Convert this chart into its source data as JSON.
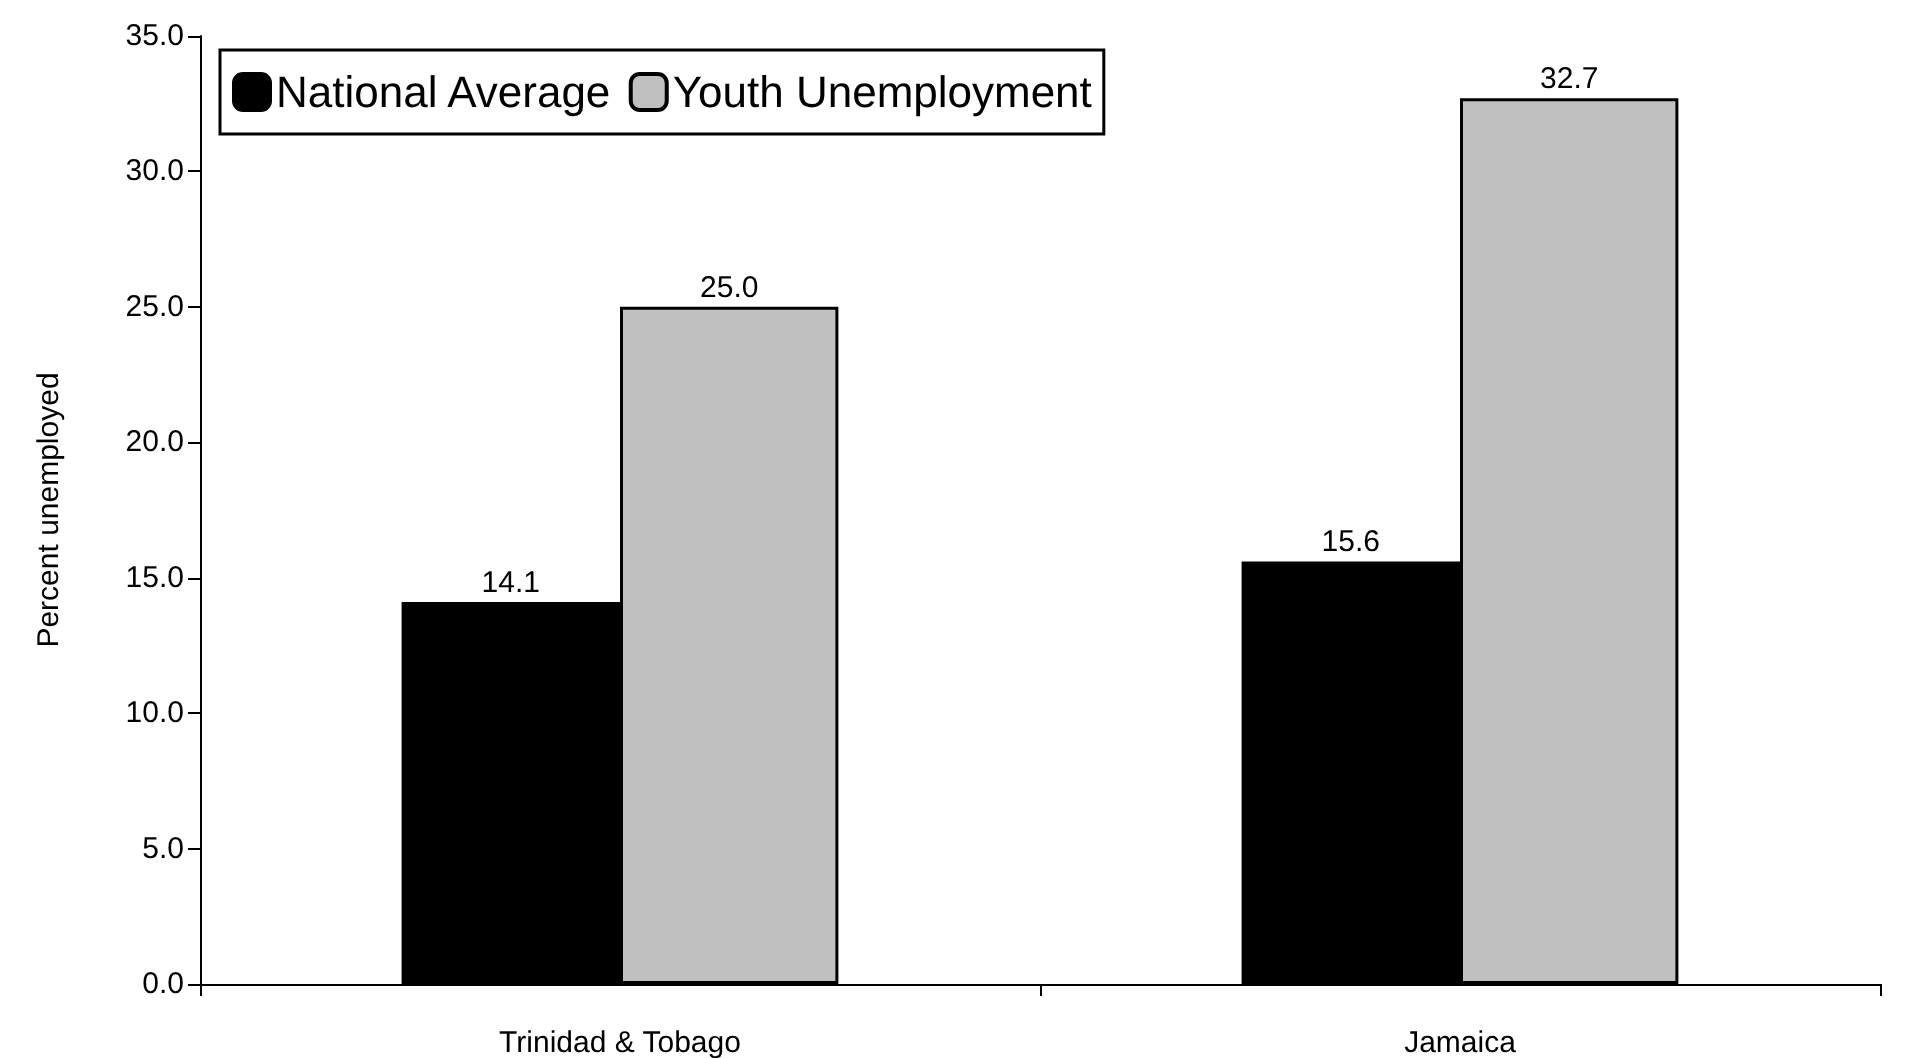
{
  "chart_data": {
    "type": "bar",
    "ylabel": "Percent unemployed",
    "categories": [
      "Trinidad & Tobago",
      "Jamaica"
    ],
    "series": [
      {
        "name": "National Average",
        "color": "#000000",
        "values": [
          14.1,
          15.6
        ],
        "value_labels": [
          "14.1",
          "15.6"
        ]
      },
      {
        "name": "Youth Unemployment",
        "color": "#c0c0c0",
        "values": [
          25.0,
          32.7
        ],
        "value_labels": [
          "25.0",
          "32.7"
        ]
      }
    ],
    "ylim": [
      0,
      35
    ],
    "yticks": [
      {
        "value": 0,
        "label": "0.0"
      },
      {
        "value": 5,
        "label": "5.0"
      },
      {
        "value": 10,
        "label": "10.0"
      },
      {
        "value": 15,
        "label": "15.0"
      },
      {
        "value": 20,
        "label": "20.0"
      },
      {
        "value": 25,
        "label": "25.0"
      },
      {
        "value": 30,
        "label": "30.0"
      },
      {
        "value": 35,
        "label": "35.0"
      }
    ],
    "grid": false,
    "legend": "top left"
  }
}
